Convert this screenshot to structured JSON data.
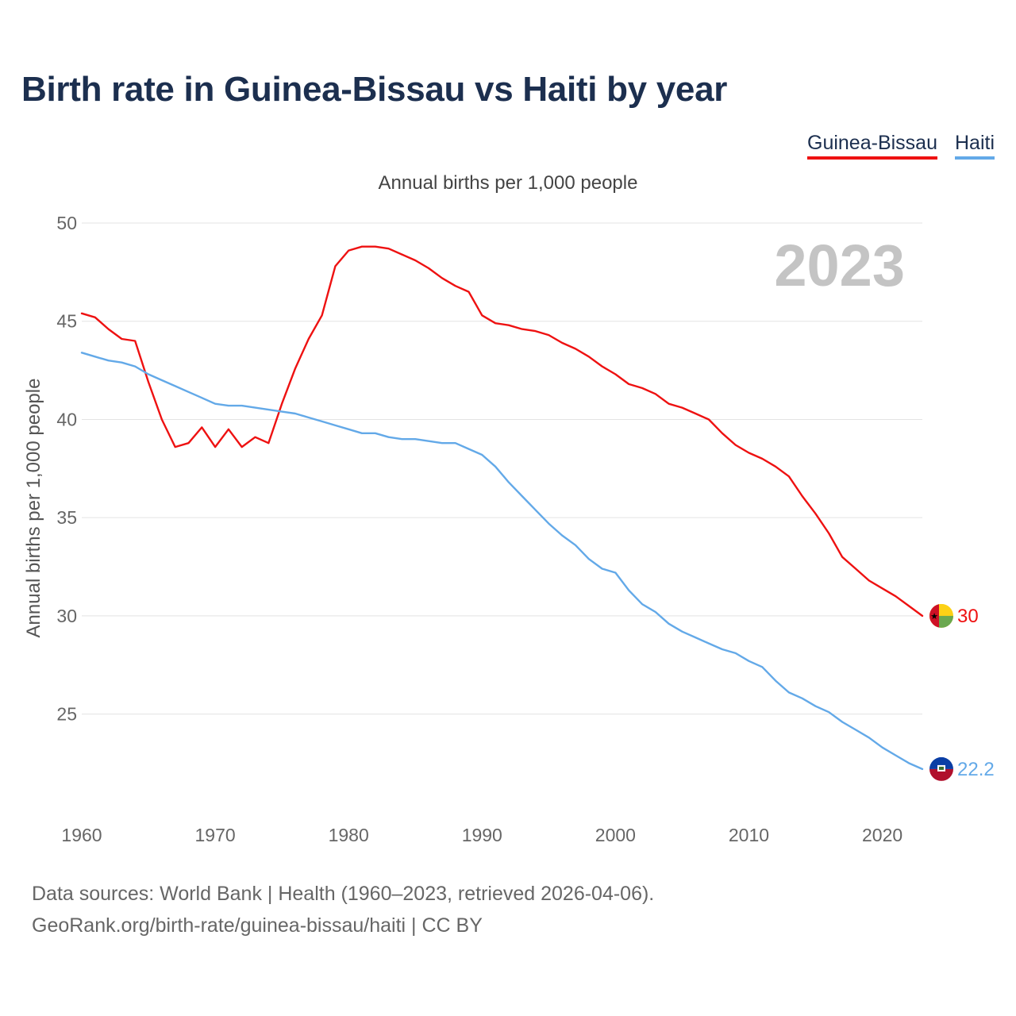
{
  "title": "Birth rate in Guinea-Bissau vs Haiti by year",
  "legend": [
    {
      "name": "Guinea-Bissau",
      "color": "#ee1111"
    },
    {
      "name": "Haiti",
      "color": "#63a9e8"
    }
  ],
  "subtitle": "Annual births per 1,000 people",
  "year_watermark": "2023",
  "source_lines": [
    "Data sources: World Bank | Health (1960–2023, retrieved 2026-04-06).",
    "GeoRank.org/birth-rate/guinea-bissau/haiti | CC BY"
  ],
  "chart_data": {
    "type": "line",
    "title": "Birth rate in Guinea-Bissau vs Haiti by year",
    "xlabel": "",
    "ylabel": "Annual births per 1,000 people",
    "xlim": [
      1960,
      2023
    ],
    "ylim": [
      20.5,
      50
    ],
    "x_ticks": [
      1960,
      1970,
      1980,
      1990,
      2000,
      2010,
      2020
    ],
    "y_ticks": [
      25,
      30,
      35,
      40,
      45,
      50
    ],
    "grid": true,
    "x": [
      1960,
      1961,
      1962,
      1963,
      1964,
      1965,
      1966,
      1967,
      1968,
      1969,
      1970,
      1971,
      1972,
      1973,
      1974,
      1975,
      1976,
      1977,
      1978,
      1979,
      1980,
      1981,
      1982,
      1983,
      1984,
      1985,
      1986,
      1987,
      1988,
      1989,
      1990,
      1991,
      1992,
      1993,
      1994,
      1995,
      1996,
      1997,
      1998,
      1999,
      2000,
      2001,
      2002,
      2003,
      2004,
      2005,
      2006,
      2007,
      2008,
      2009,
      2010,
      2011,
      2012,
      2013,
      2014,
      2015,
      2016,
      2017,
      2018,
      2019,
      2020,
      2021,
      2022,
      2023
    ],
    "series": [
      {
        "name": "Guinea-Bissau",
        "color": "#ee1111",
        "end_label": "30",
        "values": [
          45.4,
          45.2,
          44.6,
          44.1,
          44.0,
          41.9,
          40.0,
          38.6,
          38.8,
          39.6,
          38.6,
          39.5,
          38.6,
          39.1,
          38.8,
          40.8,
          42.6,
          44.1,
          45.3,
          47.8,
          48.6,
          48.8,
          48.8,
          48.7,
          48.4,
          48.1,
          47.7,
          47.2,
          46.8,
          46.5,
          45.3,
          44.9,
          44.8,
          44.6,
          44.5,
          44.3,
          43.9,
          43.6,
          43.2,
          42.7,
          42.3,
          41.8,
          41.6,
          41.3,
          40.8,
          40.6,
          40.3,
          40.0,
          39.3,
          38.7,
          38.3,
          38.0,
          37.6,
          37.1,
          36.1,
          35.2,
          34.2,
          33.0,
          32.4,
          31.8,
          31.4,
          31.0,
          30.5,
          30.0
        ]
      },
      {
        "name": "Haiti",
        "color": "#63a9e8",
        "end_label": "22.2",
        "values": [
          43.4,
          43.2,
          43.0,
          42.9,
          42.7,
          42.3,
          42.0,
          41.7,
          41.4,
          41.1,
          40.8,
          40.7,
          40.7,
          40.6,
          40.5,
          40.4,
          40.3,
          40.1,
          39.9,
          39.7,
          39.5,
          39.3,
          39.3,
          39.1,
          39.0,
          39.0,
          38.9,
          38.8,
          38.8,
          38.5,
          38.2,
          37.6,
          36.8,
          36.1,
          35.4,
          34.7,
          34.1,
          33.6,
          32.9,
          32.4,
          32.2,
          31.3,
          30.6,
          30.2,
          29.6,
          29.2,
          28.9,
          28.6,
          28.3,
          28.1,
          27.7,
          27.4,
          26.7,
          26.1,
          25.8,
          25.4,
          25.1,
          24.6,
          24.2,
          23.8,
          23.3,
          22.9,
          22.5,
          22.2
        ]
      }
    ]
  }
}
